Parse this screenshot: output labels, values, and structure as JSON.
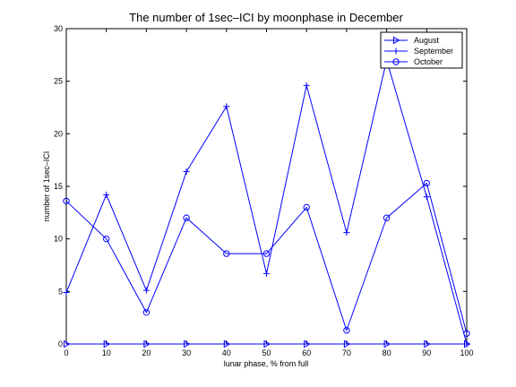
{
  "chart_data": {
    "type": "line",
    "title": "The number of 1sec–ICI by moonphase in December",
    "xlabel": "lunar phase, % from full",
    "ylabel": "number of 1sec–ICI",
    "xlim": [
      0,
      100
    ],
    "ylim": [
      0,
      30
    ],
    "xticks": [
      0,
      10,
      20,
      30,
      40,
      50,
      60,
      70,
      80,
      90,
      100
    ],
    "yticks": [
      0,
      5,
      10,
      15,
      20,
      25,
      30
    ],
    "x": [
      0,
      10,
      20,
      30,
      40,
      50,
      60,
      70,
      80,
      90,
      100
    ],
    "grid": false,
    "legend_position": "top-right",
    "line_color": "#0000ff",
    "series": [
      {
        "name": "August",
        "marker": "triangle-right",
        "values": [
          0,
          0,
          0,
          0,
          0,
          0,
          0,
          0,
          0,
          0,
          0
        ]
      },
      {
        "name": "September",
        "marker": "plus",
        "values": [
          4.9,
          14.2,
          5.1,
          16.4,
          22.6,
          6.7,
          24.6,
          10.6,
          27.0,
          14.0,
          0
        ]
      },
      {
        "name": "October",
        "marker": "circle",
        "values": [
          13.6,
          10.0,
          3.0,
          12.0,
          8.6,
          8.6,
          13.0,
          1.3,
          12.0,
          15.3,
          1.0
        ]
      }
    ]
  }
}
